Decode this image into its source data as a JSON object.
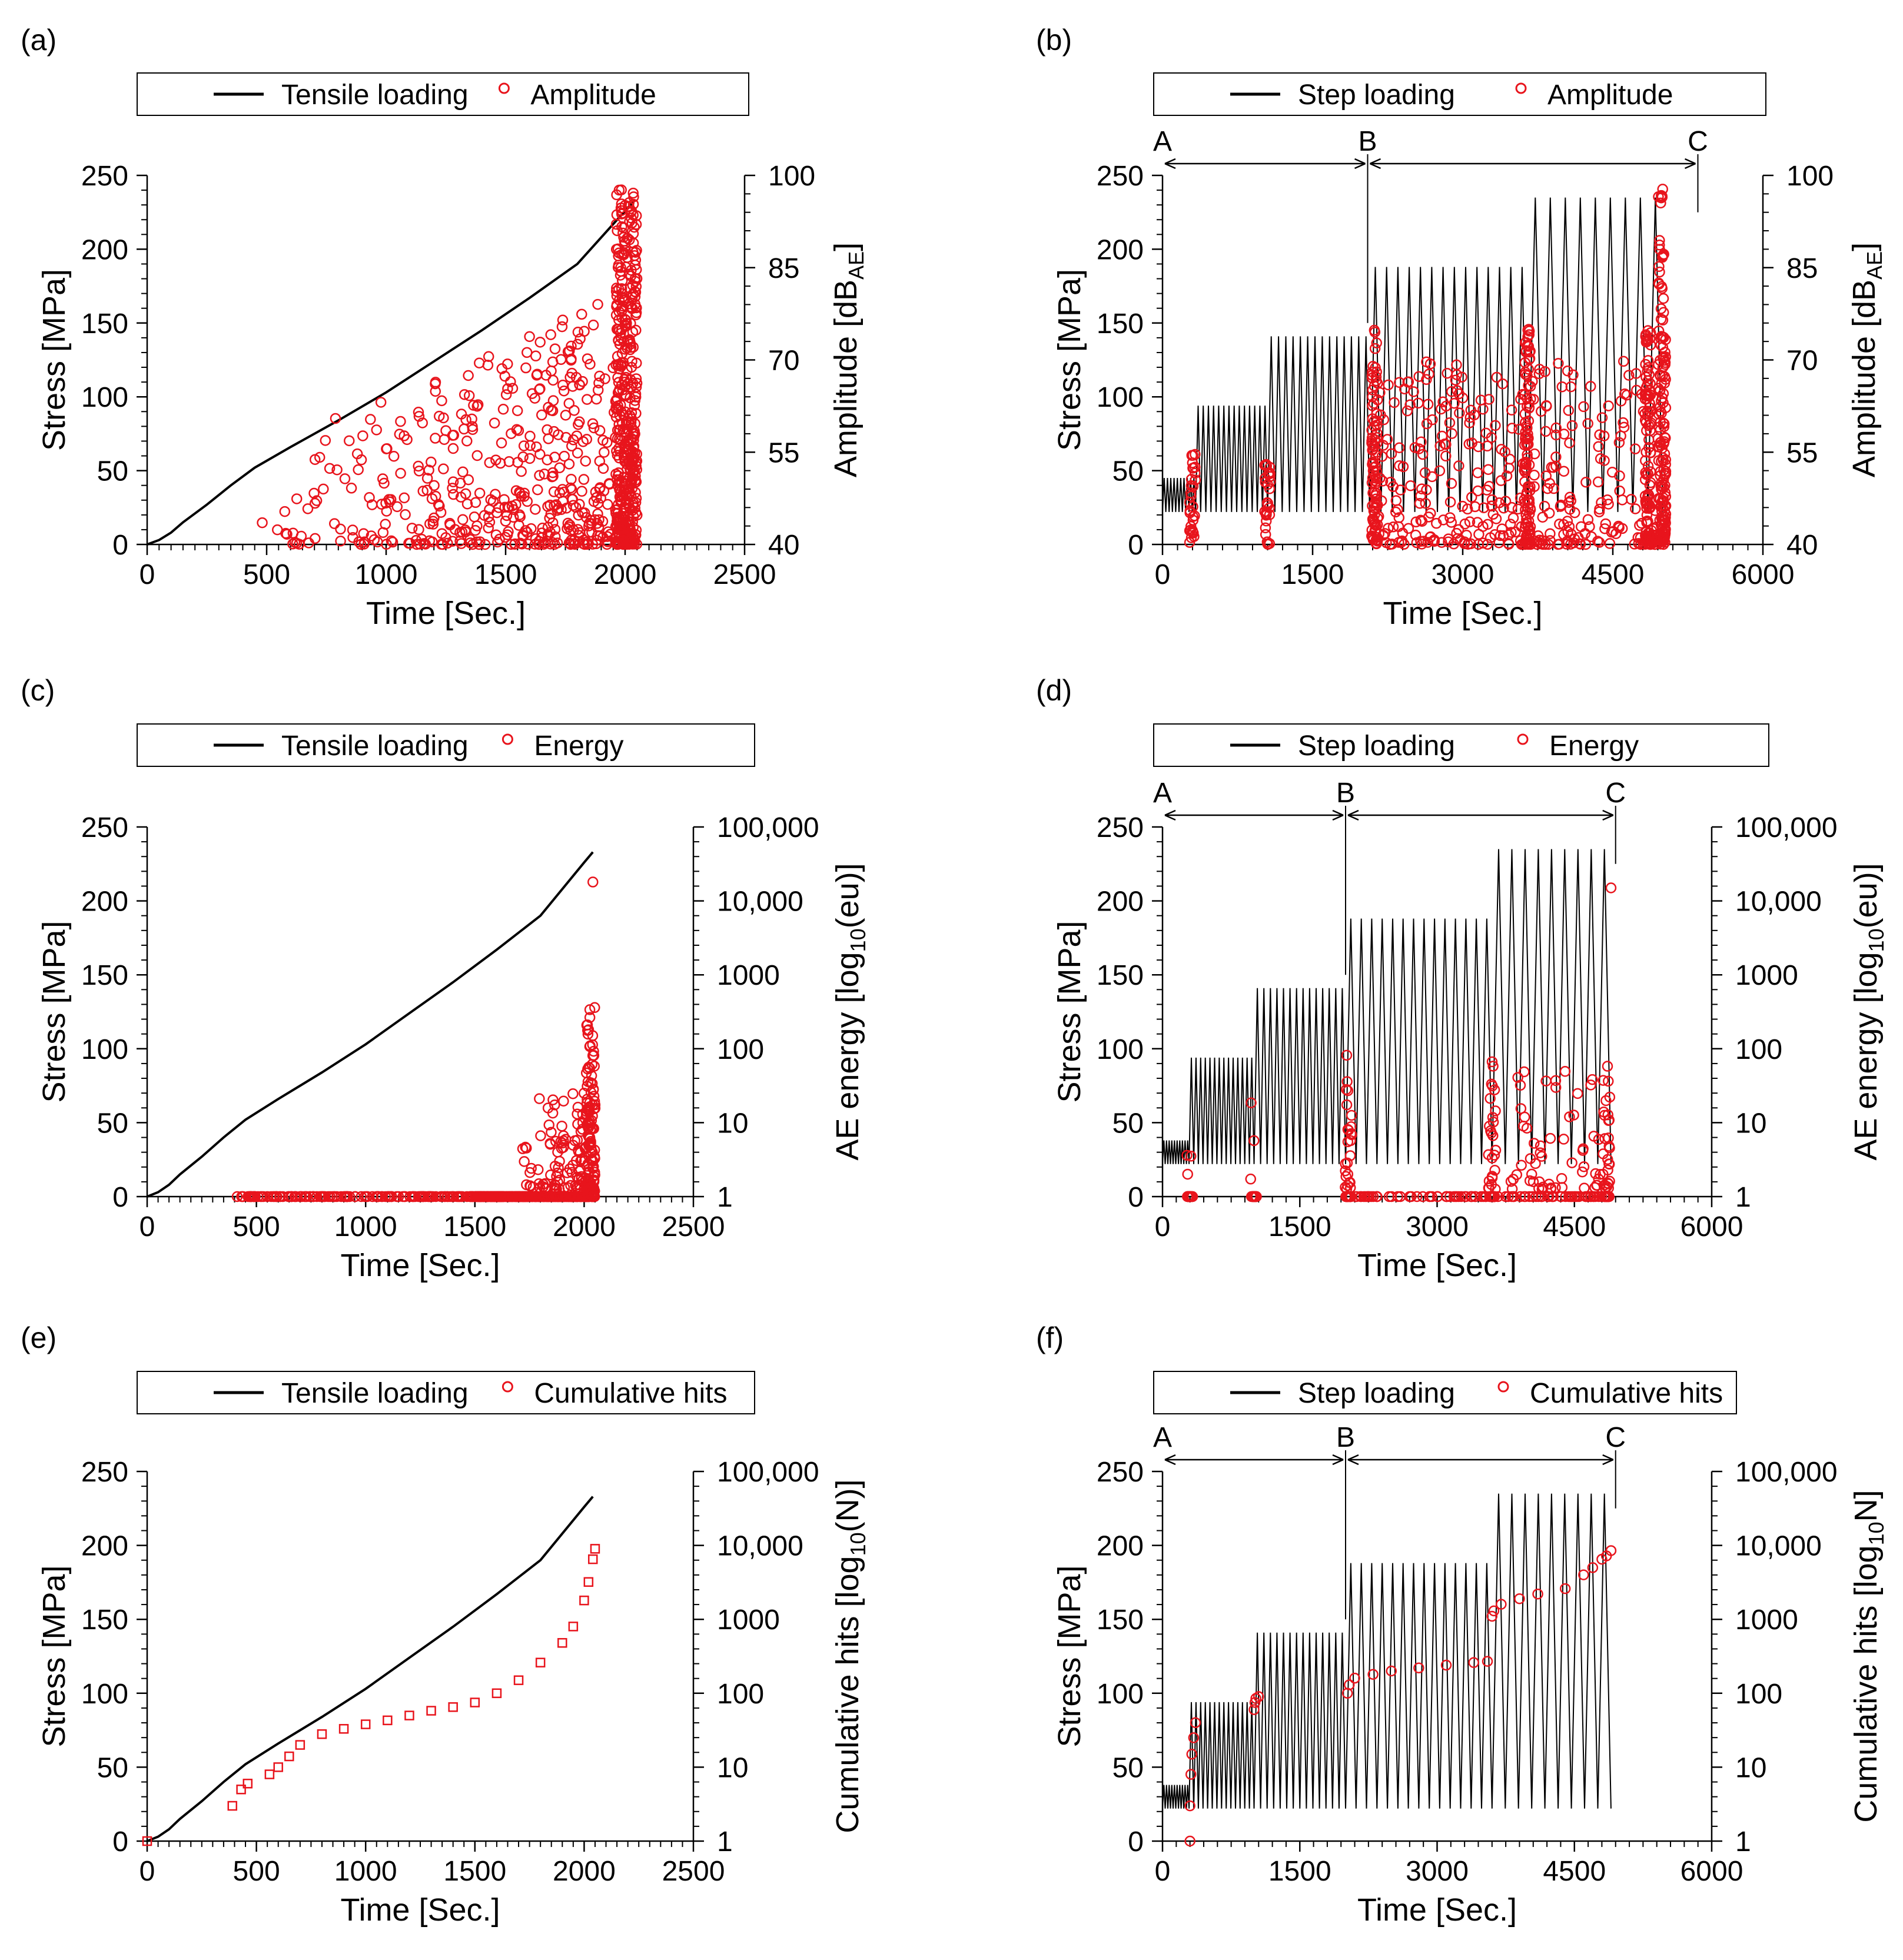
{
  "figure": {
    "colors": {
      "stress": "#000000",
      "ae": "#e8141c",
      "axis": "#000000"
    },
    "panels": [
      {
        "letter": "(a)",
        "kind": "tensile",
        "legend": {
          "line_label": "Tensile loading",
          "marker_label": "Amplitude"
        },
        "x_label": "Time [Sec.]",
        "y_label": "Stress [MPa]",
        "y2_label": {
          "main": "Amplitude [dB",
          "sub": "AE",
          "tail": "]"
        },
        "x_ticks": [
          "0",
          "500",
          "1000",
          "1500",
          "2000",
          "2500"
        ],
        "y_ticks": [
          "0",
          "50",
          "100",
          "150",
          "200",
          "250"
        ],
        "y2_ticks": [
          "40",
          "55",
          "70",
          "85",
          "100"
        ],
        "phase_markers": []
      },
      {
        "letter": "(b)",
        "kind": "step",
        "legend": {
          "line_label": "Step loading",
          "marker_label": "Amplitude"
        },
        "x_label": "Time [Sec.]",
        "y_label": "Stress [MPa]",
        "y2_label": {
          "main": "Amplitude [dB",
          "sub": "AE",
          "tail": "]"
        },
        "x_ticks": [
          "0",
          "1500",
          "3000",
          "4500",
          "6000"
        ],
        "y_ticks": [
          "0",
          "50",
          "100",
          "150",
          "200",
          "250"
        ],
        "y2_ticks": [
          "40",
          "55",
          "70",
          "85",
          "100"
        ],
        "phase_markers": [
          "A",
          "B",
          "C"
        ]
      },
      {
        "letter": "(c)",
        "kind": "tensile",
        "legend": {
          "line_label": "Tensile loading",
          "marker_label": "Energy"
        },
        "x_label": "Time [Sec.]",
        "y_label": "Stress [MPa]",
        "y2_label": {
          "main": "AE energy [log",
          "sub": "10",
          "tail": "(eu)]"
        },
        "x_ticks": [
          "0",
          "500",
          "1000",
          "1500",
          "2000",
          "2500"
        ],
        "y_ticks": [
          "0",
          "50",
          "100",
          "150",
          "200",
          "250"
        ],
        "y2_ticks": [
          "1",
          "10",
          "100",
          "1000",
          "10,000",
          "100,000"
        ],
        "phase_markers": []
      },
      {
        "letter": "(d)",
        "kind": "step",
        "legend": {
          "line_label": "Step loading",
          "marker_label": "Energy"
        },
        "x_label": "Time [Sec.]",
        "y_label": "Stress [MPa]",
        "y2_label": {
          "main": "AE energy [log",
          "sub": "10",
          "tail": "(eu)]"
        },
        "x_ticks": [
          "0",
          "1500",
          "3000",
          "4500",
          "6000"
        ],
        "y_ticks": [
          "0",
          "50",
          "100",
          "150",
          "200",
          "250"
        ],
        "y2_ticks": [
          "1",
          "10",
          "100",
          "1000",
          "10,000",
          "100,000"
        ],
        "phase_markers": [
          "A",
          "B",
          "C"
        ]
      },
      {
        "letter": "(e)",
        "kind": "tensile",
        "legend": {
          "line_label": "Tensile loading",
          "marker_label": "Cumulative hits"
        },
        "x_label": "Time [Sec.]",
        "y_label": "Stress [MPa]",
        "y2_label": {
          "main": "Cumulative hits  [log",
          "sub": "10",
          "tail": "(N)]"
        },
        "x_ticks": [
          "0",
          "500",
          "1000",
          "1500",
          "2000",
          "2500"
        ],
        "y_ticks": [
          "0",
          "50",
          "100",
          "150",
          "200",
          "250"
        ],
        "y2_ticks": [
          "1",
          "10",
          "100",
          "1000",
          "10,000",
          "100,000"
        ],
        "phase_markers": []
      },
      {
        "letter": "(f)",
        "kind": "step",
        "legend": {
          "line_label": "Step loading",
          "marker_label": "Cumulative hits"
        },
        "x_label": "Time [Sec.]",
        "y_label": "Stress [MPa]",
        "y2_label": {
          "main": "Cumulative hits [log",
          "sub": "10",
          "tail": "N]"
        },
        "x_ticks": [
          "0",
          "1500",
          "3000",
          "4500",
          "6000"
        ],
        "y_ticks": [
          "0",
          "50",
          "100",
          "150",
          "200",
          "250"
        ],
        "y2_ticks": [
          "1",
          "10",
          "100",
          "1000",
          "10,000",
          "100,000"
        ],
        "phase_markers": [
          "A",
          "B",
          "C"
        ]
      }
    ]
  },
  "chart_data": [
    {
      "type": "line+scatter",
      "panel": "(a)",
      "title": "",
      "xlabel": "Time [Sec.]",
      "ylabel": "Stress [MPa]",
      "y2label": "Amplitude [dBAE]",
      "xlim": [
        0,
        2500
      ],
      "ylim": [
        0,
        250
      ],
      "y2lim": [
        40,
        100
      ],
      "y2scale": "linear",
      "series": [
        {
          "name": "Tensile loading",
          "kind": "line",
          "x": [
            0,
            50,
            100,
            150,
            250,
            350,
            450,
            600,
            800,
            1000,
            1200,
            1400,
            1600,
            1800,
            2000,
            2040
          ],
          "y": [
            0,
            3,
            8,
            15,
            27,
            40,
            52,
            66,
            84,
            103,
            124,
            145,
            167,
            190,
            226,
            233
          ]
        },
        {
          "name": "Amplitude",
          "kind": "scatter",
          "generator": "amplitude_burst",
          "t_start": 380,
          "t_end": 2050,
          "y_min": 40,
          "y_max": 99
        }
      ]
    },
    {
      "type": "line+scatter",
      "panel": "(b)",
      "title": "",
      "xlabel": "Time [Sec.]",
      "ylabel": "Stress [MPa]",
      "y2label": "Amplitude [dBAE]",
      "xlim": [
        0,
        6000
      ],
      "ylim": [
        0,
        250
      ],
      "y2lim": [
        40,
        100
      ],
      "y2scale": "linear",
      "phases": [
        {
          "label": "A",
          "x": 0
        },
        {
          "label": "B",
          "x": 2050
        },
        {
          "label": "C",
          "x": 5350
        }
      ],
      "series": [
        {
          "name": "Step loading",
          "kind": "line",
          "steps": [
            {
              "t_start": 0,
              "t_end": 330,
              "min": 22,
              "max": 45,
              "cycles": 10
            },
            {
              "t_start": 330,
              "t_end": 1050,
              "min": 22,
              "max": 94,
              "cycles": 14
            },
            {
              "t_start": 1050,
              "t_end": 2070,
              "min": 22,
              "max": 141,
              "cycles": 14
            },
            {
              "t_start": 2070,
              "t_end": 3650,
              "min": 22,
              "max": 188,
              "cycles": 14
            },
            {
              "t_start": 3650,
              "t_end": 5000,
              "min": 22,
              "max": 235,
              "cycles": 9
            }
          ]
        },
        {
          "name": "Amplitude",
          "kind": "scatter",
          "generator": "amplitude_clusters",
          "cluster_times": [
            300,
            1050,
            2120,
            3650,
            4850,
            5000
          ],
          "y_min": 40,
          "y_max": 99
        }
      ]
    },
    {
      "type": "line+scatter",
      "panel": "(c)",
      "title": "",
      "xlabel": "Time [Sec.]",
      "ylabel": "Stress [MPa]",
      "y2label": "AE energy [log10(eu)]",
      "xlim": [
        0,
        2500
      ],
      "ylim": [
        0,
        250
      ],
      "y2lim": [
        1,
        100000
      ],
      "y2scale": "log",
      "series": [
        {
          "name": "Tensile loading",
          "kind": "line",
          "x": [
            0,
            50,
            100,
            150,
            250,
            350,
            450,
            600,
            800,
            1000,
            1200,
            1400,
            1600,
            1800,
            2000,
            2040
          ],
          "y": [
            0,
            3,
            8,
            15,
            27,
            40,
            52,
            66,
            84,
            103,
            124,
            145,
            167,
            190,
            226,
            233
          ]
        },
        {
          "name": "Energy",
          "kind": "scatter",
          "generator": "energy_tensile",
          "t_start": 390,
          "t_end": 2050,
          "y_min": 1,
          "y_max": 20000
        }
      ]
    },
    {
      "type": "line+scatter",
      "panel": "(d)",
      "title": "",
      "xlabel": "Time [Sec.]",
      "ylabel": "Stress [MPa]",
      "y2label": "AE energy [log10(eu)]",
      "xlim": [
        0,
        6000
      ],
      "ylim": [
        0,
        250
      ],
      "y2lim": [
        1,
        100000
      ],
      "y2scale": "log",
      "phases": [
        {
          "label": "A",
          "x": 0
        },
        {
          "label": "B",
          "x": 2000
        },
        {
          "label": "C",
          "x": 4950
        }
      ],
      "series": [
        {
          "name": "Step loading",
          "kind": "line",
          "steps": [
            {
              "t_start": 0,
              "t_end": 290,
              "min": 22,
              "max": 38,
              "cycles": 10
            },
            {
              "t_start": 290,
              "t_end": 1000,
              "min": 22,
              "max": 94,
              "cycles": 14
            },
            {
              "t_start": 1000,
              "t_end": 2000,
              "min": 22,
              "max": 141,
              "cycles": 14
            },
            {
              "t_start": 2000,
              "t_end": 3600,
              "min": 22,
              "max": 188,
              "cycles": 14
            },
            {
              "t_start": 3600,
              "t_end": 4900,
              "min": 22,
              "max": 235,
              "cycles": 9
            }
          ]
        },
        {
          "name": "Energy",
          "kind": "scatter",
          "generator": "energy_step",
          "cluster_times": [
            300,
            1000,
            2030,
            3600,
            4850
          ],
          "y_min": 1,
          "y_max": 15000
        }
      ]
    },
    {
      "type": "line+scatter",
      "panel": "(e)",
      "title": "",
      "xlabel": "Time [Sec.]",
      "ylabel": "Stress [MPa]",
      "y2label": "Cumulative hits [log10(N)]",
      "xlim": [
        0,
        2500
      ],
      "ylim": [
        0,
        250
      ],
      "y2lim": [
        1,
        100000
      ],
      "y2scale": "log",
      "series": [
        {
          "name": "Tensile loading",
          "kind": "line",
          "x": [
            0,
            50,
            100,
            150,
            250,
            350,
            450,
            600,
            800,
            1000,
            1200,
            1400,
            1600,
            1800,
            2000,
            2040
          ],
          "y": [
            0,
            3,
            8,
            15,
            27,
            40,
            52,
            66,
            84,
            103,
            124,
            145,
            167,
            190,
            226,
            233
          ]
        },
        {
          "name": "Cumulative hits",
          "kind": "scatter",
          "x": [
            0,
            390,
            430,
            460,
            560,
            600,
            650,
            700,
            800,
            900,
            1000,
            1100,
            1200,
            1300,
            1400,
            1500,
            1600,
            1700,
            1800,
            1900,
            1950,
            2000,
            2020,
            2040,
            2050
          ],
          "y": [
            1,
            3,
            5,
            6,
            8,
            10,
            14,
            20,
            28,
            33,
            38,
            43,
            50,
            58,
            65,
            75,
            100,
            150,
            260,
            480,
            800,
            1800,
            3200,
            6500,
            9000
          ]
        }
      ]
    },
    {
      "type": "line+scatter",
      "panel": "(f)",
      "title": "",
      "xlabel": "Time [Sec.]",
      "ylabel": "Stress [MPa]",
      "y2label": "Cumulative hits [log10N]",
      "xlim": [
        0,
        6000
      ],
      "ylim": [
        0,
        250
      ],
      "y2lim": [
        1,
        100000
      ],
      "y2scale": "log",
      "phases": [
        {
          "label": "A",
          "x": 0
        },
        {
          "label": "B",
          "x": 2000
        },
        {
          "label": "C",
          "x": 4950
        }
      ],
      "series": [
        {
          "name": "Step loading",
          "kind": "line",
          "steps": [
            {
              "t_start": 0,
              "t_end": 290,
              "min": 22,
              "max": 38,
              "cycles": 10
            },
            {
              "t_start": 290,
              "t_end": 1000,
              "min": 22,
              "max": 94,
              "cycles": 14
            },
            {
              "t_start": 1000,
              "t_end": 2000,
              "min": 22,
              "max": 141,
              "cycles": 14
            },
            {
              "t_start": 2000,
              "t_end": 3600,
              "min": 22,
              "max": 188,
              "cycles": 14
            },
            {
              "t_start": 3600,
              "t_end": 4900,
              "min": 22,
              "max": 235,
              "cycles": 9
            }
          ]
        },
        {
          "name": "Cumulative hits",
          "kind": "scatter",
          "x": [
            300,
            300,
            310,
            320,
            340,
            360,
            1000,
            1010,
            1020,
            1050,
            2020,
            2040,
            2100,
            2300,
            2500,
            2800,
            3100,
            3400,
            3550,
            3600,
            3620,
            3700,
            3900,
            4100,
            4400,
            4600,
            4700,
            4800,
            4850,
            4900
          ],
          "y": [
            1,
            3,
            8,
            15,
            25,
            40,
            60,
            75,
            85,
            90,
            100,
            130,
            160,
            180,
            200,
            220,
            240,
            260,
            270,
            1100,
            1300,
            1600,
            1900,
            2200,
            2600,
            4000,
            5000,
            6500,
            7200,
            8500
          ]
        }
      ]
    }
  ]
}
